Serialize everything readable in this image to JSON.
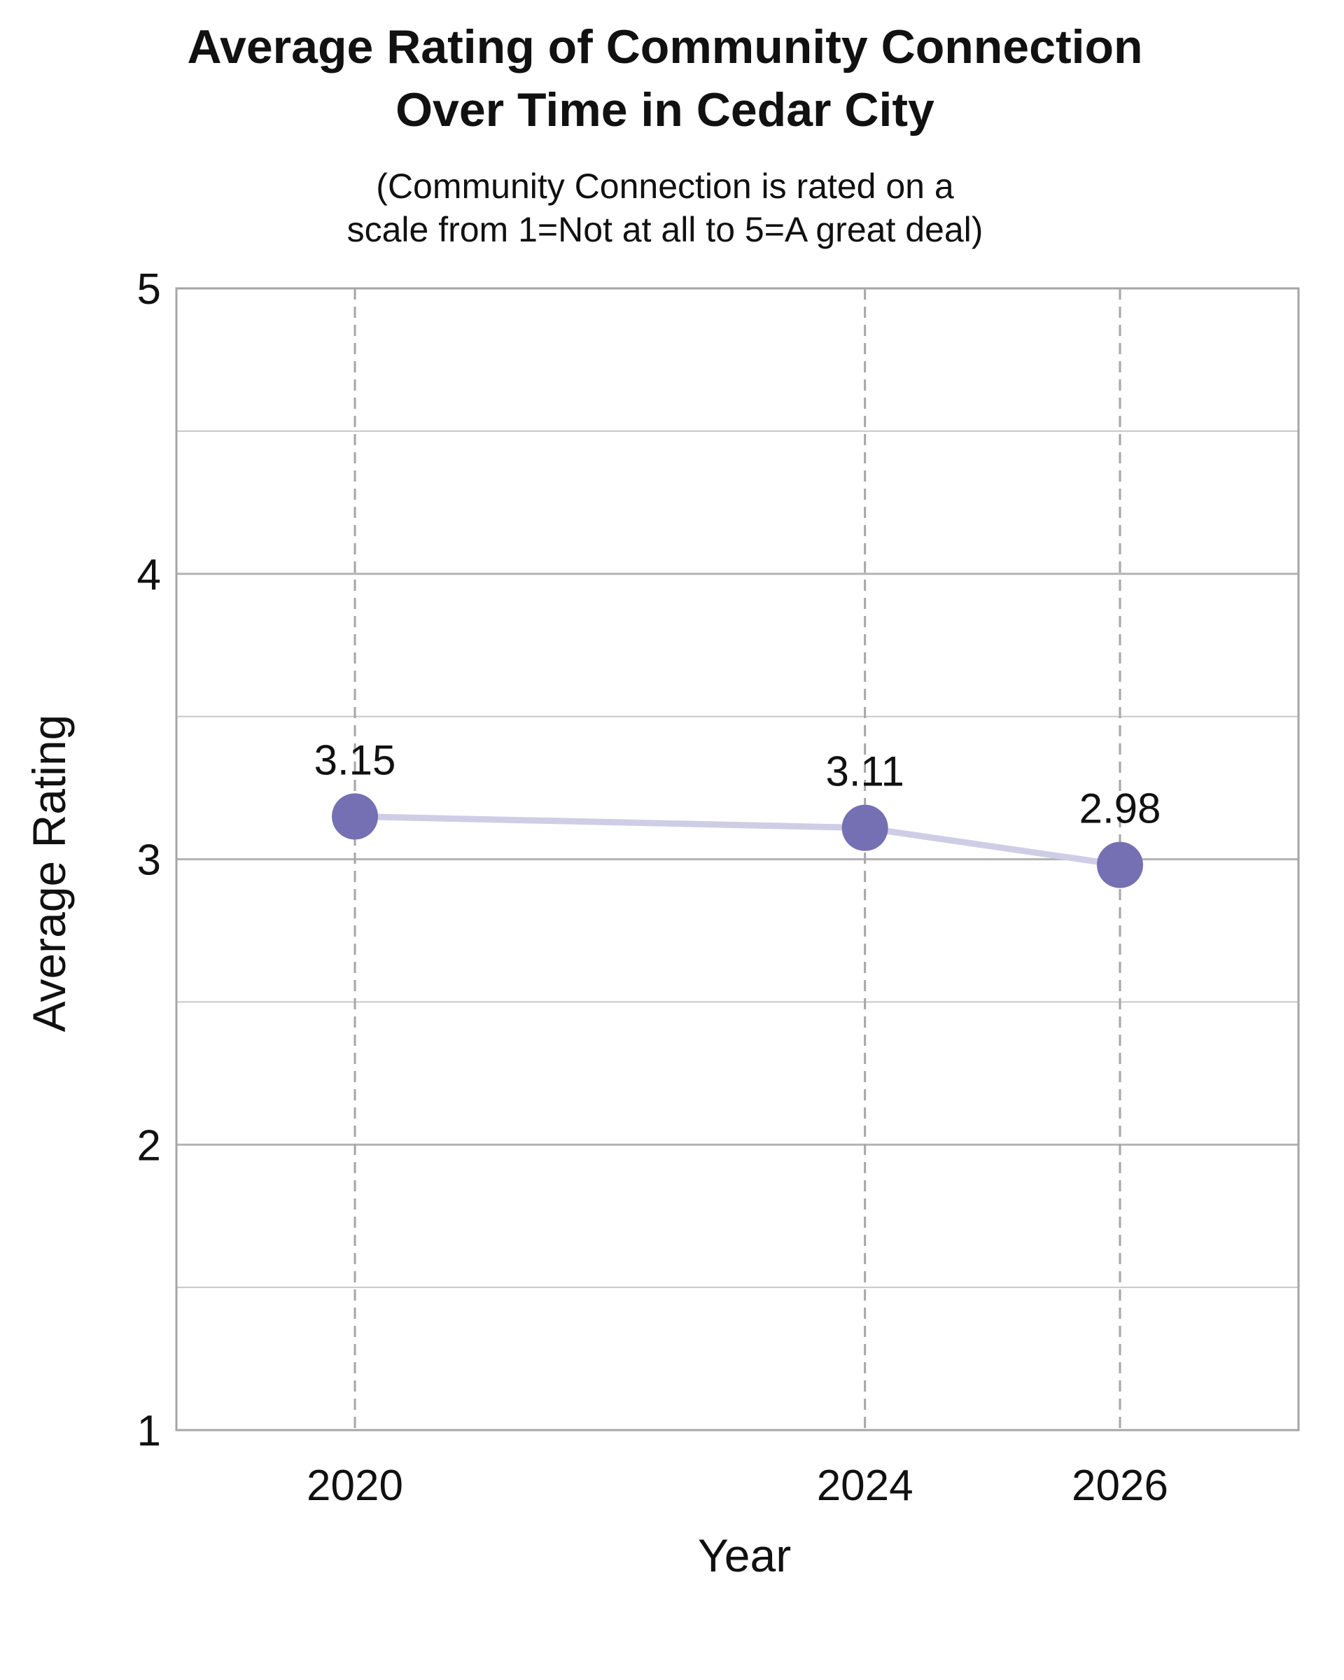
{
  "chart_data": {
    "type": "line",
    "title_line1": "Average Rating of Community Connection",
    "title_line2": "Over Time in Cedar City",
    "subtitle_line1": "(Community Connection is rated on a",
    "subtitle_line2": "scale from 1=Not at all to 5=A great deal)",
    "xlabel": "Year",
    "ylabel": "Average Rating",
    "x": [
      2020,
      2024,
      2026
    ],
    "x_tick_labels": [
      "2020",
      "2024",
      "2026"
    ],
    "y": [
      3.15,
      3.11,
      2.98
    ],
    "data_labels": [
      "3.15",
      "3.11",
      "2.98"
    ],
    "xlim": [
      2018.6,
      2027.4
    ],
    "ylim": [
      1,
      5
    ],
    "y_ticks": [
      1,
      2,
      3,
      4,
      5
    ],
    "y_tick_labels": [
      "1",
      "2",
      "3",
      "4",
      "5"
    ],
    "y_minor_gridlines": [
      1.5,
      2.5,
      3.5,
      4.5
    ],
    "grid": true,
    "colors": {
      "marker": "#7570b3",
      "line": "#cfcde6",
      "grid": "#b3b3b3",
      "vertical_dashed": "#a6a6a6"
    }
  }
}
